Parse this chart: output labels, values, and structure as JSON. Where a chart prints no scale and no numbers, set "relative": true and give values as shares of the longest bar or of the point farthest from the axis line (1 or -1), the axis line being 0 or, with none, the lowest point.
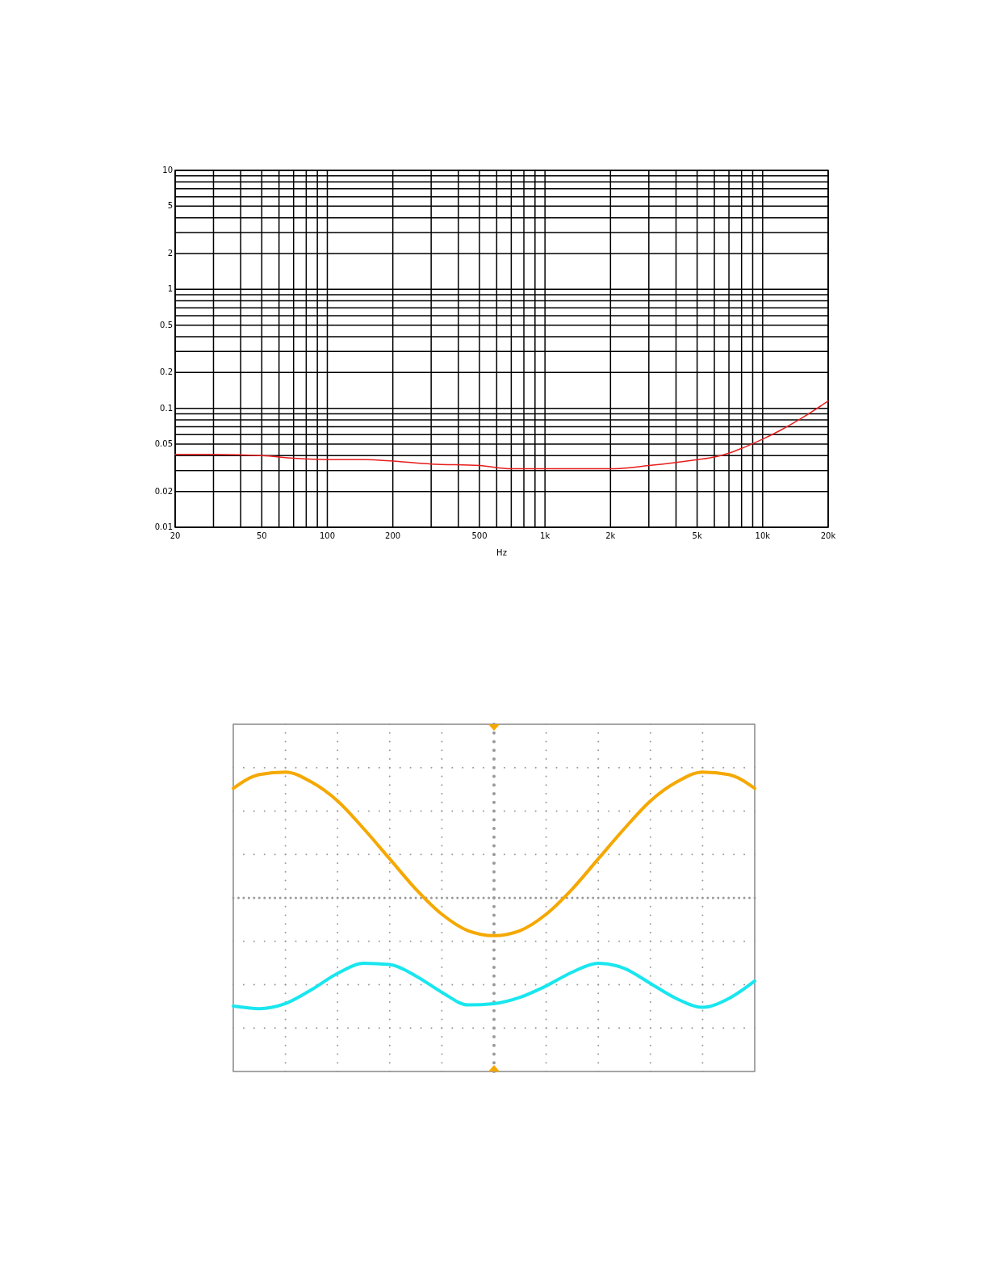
{
  "chart_data": [
    {
      "type": "line",
      "xlabel": "Hz",
      "log": "xy",
      "grid": true,
      "xlim": [
        20,
        20000
      ],
      "ylim": [
        0.01,
        10
      ],
      "xticks": [
        20,
        {
          "value": 30,
          "label": null
        },
        {
          "value": 40,
          "label": null
        },
        50,
        {
          "value": 60,
          "label": null
        },
        {
          "value": 70,
          "label": null
        },
        {
          "value": 80,
          "label": null
        },
        {
          "value": 90,
          "label": null
        },
        100,
        200,
        {
          "value": 300,
          "label": null
        },
        {
          "value": 400,
          "label": null
        },
        500,
        {
          "value": 600,
          "label": null
        },
        {
          "value": 700,
          "label": null
        },
        {
          "value": 800,
          "label": null
        },
        {
          "value": 900,
          "label": null
        },
        {
          "value": 1000,
          "label": "1k"
        },
        {
          "value": 2000,
          "label": "2k"
        },
        {
          "value": 3000,
          "label": null
        },
        {
          "value": 4000,
          "label": null
        },
        {
          "value": 5000,
          "label": "5k"
        },
        {
          "value": 6000,
          "label": null
        },
        {
          "value": 7000,
          "label": null
        },
        {
          "value": 8000,
          "label": null
        },
        {
          "value": 9000,
          "label": null
        },
        {
          "value": 10000,
          "label": "10k"
        },
        {
          "value": 20000,
          "label": "20k"
        }
      ],
      "yticks": [
        0.01,
        0.02,
        {
          "value": 0.03,
          "label": null
        },
        {
          "value": 0.04,
          "label": null
        },
        0.05,
        {
          "value": 0.06,
          "label": null
        },
        {
          "value": 0.07,
          "label": null
        },
        {
          "value": 0.08,
          "label": null
        },
        {
          "value": 0.09,
          "label": null
        },
        0.1,
        0.2,
        {
          "value": 0.3,
          "label": null
        },
        {
          "value": 0.4,
          "label": null
        },
        0.5,
        {
          "value": 0.6,
          "label": null
        },
        {
          "value": 0.7,
          "label": null
        },
        {
          "value": 0.8,
          "label": null
        },
        {
          "value": 0.9,
          "label": null
        },
        1,
        2,
        {
          "value": 3,
          "label": null
        },
        {
          "value": 4,
          "label": null
        },
        5,
        {
          "value": 6,
          "label": null
        },
        {
          "value": 7,
          "label": null
        },
        {
          "value": 8,
          "label": null
        },
        {
          "value": 9,
          "label": null
        },
        10
      ],
      "series": [
        {
          "color": "#e81c1c",
          "x": [
            20,
            30,
            50,
            70,
            100,
            150,
            200,
            300,
            500,
            700,
            1000,
            1500,
            2000,
            3000,
            4000,
            5000,
            6000,
            7000,
            8000,
            10000,
            12000,
            15000,
            20000
          ],
          "values": [
            0.041,
            0.041,
            0.04,
            0.038,
            0.037,
            0.037,
            0.036,
            0.034,
            0.033,
            0.031,
            0.031,
            0.031,
            0.031,
            0.033,
            0.035,
            0.037,
            0.039,
            0.042,
            0.046,
            0.055,
            0.065,
            0.082,
            0.115
          ]
        }
      ]
    },
    {
      "type": "line",
      "relative": true,
      "grid": true,
      "ref_lines": [
        {
          "axis": "y",
          "value": 0,
          "color": "#999999",
          "line_style": "dotted"
        }
      ],
      "categories": [
        null,
        null,
        null,
        null,
        null,
        null,
        null,
        null,
        null,
        null,
        null,
        null,
        null,
        null,
        null,
        null,
        null,
        null,
        null,
        null,
        null
      ],
      "series": [
        {
          "color": "#f5a800",
          "values": [
            0.87,
            0.98,
            1.0,
            0.92,
            0.77,
            0.55,
            0.31,
            0.07,
            -0.13,
            -0.26,
            -0.3,
            -0.26,
            -0.13,
            0.07,
            0.31,
            0.55,
            0.77,
            0.92,
            1.0,
            0.98,
            0.87
          ]
        },
        {
          "color": "#19e6ee",
          "values": [
            -0.86,
            -0.88,
            -0.84,
            -0.73,
            -0.6,
            -0.52,
            -0.53,
            -0.62,
            -0.75,
            -0.85,
            -0.84,
            -0.79,
            -0.7,
            -0.59,
            -0.52,
            -0.56,
            -0.68,
            -0.8,
            -0.87,
            -0.8,
            -0.66
          ]
        }
      ]
    }
  ]
}
